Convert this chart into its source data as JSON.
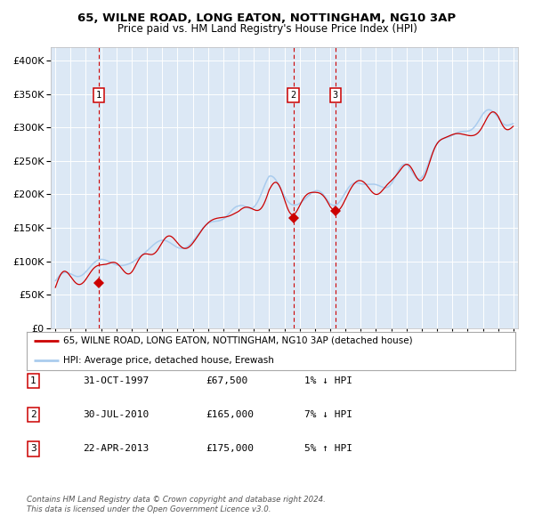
{
  "title1": "65, WILNE ROAD, LONG EATON, NOTTINGHAM, NG10 3AP",
  "title2": "Price paid vs. HM Land Registry's House Price Index (HPI)",
  "legend_red": "65, WILNE ROAD, LONG EATON, NOTTINGHAM, NG10 3AP (detached house)",
  "legend_blue": "HPI: Average price, detached house, Erewash",
  "transactions": [
    {
      "num": 1,
      "date": "31-OCT-1997",
      "price": 67500,
      "pct": "1%",
      "dir": "↓"
    },
    {
      "num": 2,
      "date": "30-JUL-2010",
      "price": 165000,
      "pct": "7%",
      "dir": "↓"
    },
    {
      "num": 3,
      "date": "22-APR-2013",
      "price": 175000,
      "pct": "5%",
      "dir": "↑"
    }
  ],
  "footer1": "Contains HM Land Registry data © Crown copyright and database right 2024.",
  "footer2": "This data is licensed under the Open Government Licence v3.0.",
  "red_color": "#cc0000",
  "blue_color": "#aaccee",
  "plot_bg": "#dce8f5",
  "grid_color": "#ffffff",
  "dashed_color": "#cc0000",
  "outer_bg": "#f0f4f8",
  "ylim": [
    0,
    420000
  ],
  "yticks": [
    0,
    50000,
    100000,
    150000,
    200000,
    250000,
    300000,
    350000,
    400000
  ],
  "year_start": 1995,
  "year_end": 2025,
  "t1_year": 1997.833,
  "t2_year": 2010.583,
  "t3_year": 2013.333,
  "t1_price": 67500,
  "t2_price": 165000,
  "t3_price": 175000
}
